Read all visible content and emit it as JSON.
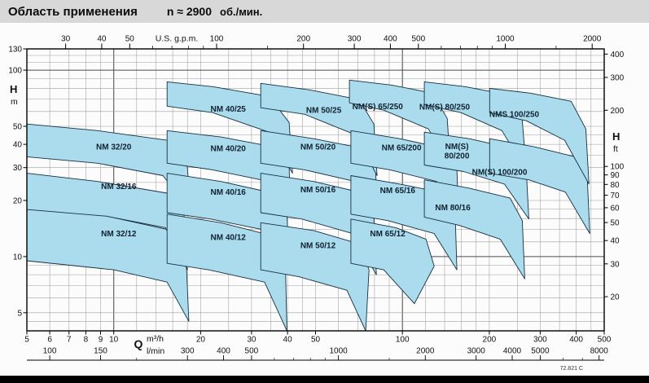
{
  "header": {
    "title": "Область применения",
    "speed": "n ≈ 2900",
    "speed_units": "об./мин."
  },
  "footer": {
    "drawing_number": "72.821 C"
  },
  "colors": {
    "title_bg": "#d8d8d8",
    "region_fill": "#abdcee",
    "region_stroke": "#17303f",
    "grid_minor": "#9e9e9e",
    "grid_major": "#4d4d4d",
    "frame": "#000000",
    "text": "#111111"
  },
  "chart_data": {
    "type": "area",
    "title": "Область применения n ≈ 2900 об./мин.",
    "description": "Pump application range chart: flow Q vs head H, log-log axes, shaded operating region per pump model",
    "q_range_m3h": [
      5,
      500
    ],
    "h_range_m": [
      4,
      130
    ],
    "axes": {
      "top": {
        "title": "U.S. g.p.m.",
        "gpm_per_m3h": 4.4029,
        "labels": [
          30,
          40,
          50,
          100,
          200,
          300,
          400,
          500,
          1000,
          2000
        ],
        "minor_ticks": [
          60,
          70,
          80,
          90,
          150,
          600,
          700,
          800,
          900,
          1500
        ]
      },
      "bottom": {
        "letter": "Q",
        "unit_primary": "m³/h",
        "unit_secondary": "l/min",
        "m3h_labels": [
          5,
          6,
          7,
          8,
          9,
          10,
          20,
          30,
          40,
          50,
          100,
          200,
          300,
          400,
          500
        ],
        "lmin_per_m3h": 16.667,
        "lmin_labels": [
          100,
          150,
          300,
          400,
          500,
          1000,
          2000,
          3000,
          4000,
          5000,
          8000
        ],
        "lmin_minor_ticks": [
          200,
          600,
          700,
          800,
          900,
          1500,
          6000,
          7000
        ]
      },
      "left": {
        "letter": "H",
        "unit": "m",
        "labels": [
          130,
          100,
          50,
          40,
          30,
          20,
          10,
          5
        ]
      },
      "right": {
        "letter": "H",
        "unit": "ft",
        "m_per_ft": 0.3048,
        "labels": [
          400,
          300,
          200,
          100,
          90,
          80,
          70,
          60,
          50,
          40,
          30,
          20
        ]
      }
    },
    "grid": {
      "x_minor": [
        6,
        7,
        8,
        9,
        12,
        14,
        16,
        18,
        20,
        25,
        30,
        35,
        40,
        45,
        50,
        60,
        70,
        80,
        90,
        120,
        140,
        160,
        180,
        200,
        250,
        300,
        350,
        400,
        450
      ],
      "x_major": [
        10,
        100
      ],
      "y_minor": [
        4.5,
        5,
        6,
        7,
        8,
        9,
        12,
        14,
        16,
        18,
        20,
        25,
        30,
        35,
        40,
        45,
        50,
        60,
        70,
        80,
        90,
        110,
        120
      ],
      "y_major": [
        10,
        100
      ]
    },
    "regions": [
      {
        "name": "NM 32/12",
        "label_lines": [
          "NM 32/12"
        ],
        "label_q": 10.4,
        "label_h": 13.3,
        "points_q_h": [
          [
            5,
            19.1
          ],
          [
            8.8,
            16.9
          ],
          [
            15.3,
            14.0
          ],
          [
            17.8,
            9.9
          ],
          [
            18.2,
            4.5
          ],
          [
            15.3,
            7.3
          ],
          [
            10,
            8.5
          ],
          [
            5,
            9.5
          ]
        ]
      },
      {
        "name": "NM 32/16",
        "label_lines": [
          "NM 32/16"
        ],
        "label_q": 10.4,
        "label_h": 23.8,
        "points_q_h": [
          [
            5,
            28.0
          ],
          [
            8.8,
            25.3
          ],
          [
            15.3,
            21.9
          ],
          [
            17.5,
            16.9
          ],
          [
            18,
            8.5
          ],
          [
            15.1,
            14.3
          ],
          [
            9.4,
            16.5
          ],
          [
            5,
            17.9
          ]
        ]
      },
      {
        "name": "NM 32/20",
        "label_lines": [
          "NM 32/20"
        ],
        "label_q": 10.0,
        "label_h": 38.8,
        "points_q_h": [
          [
            5,
            51.4
          ],
          [
            8.8,
            47.4
          ],
          [
            15.3,
            42.1
          ],
          [
            18,
            30.1
          ],
          [
            18.4,
            17.6
          ],
          [
            14.8,
            27.2
          ],
          [
            8.8,
            31.7
          ],
          [
            5,
            34.3
          ]
        ]
      },
      {
        "name": "NM 40/12",
        "label_lines": [
          "NM 40/12"
        ],
        "label_q": 24.9,
        "label_h": 12.7,
        "points_q_h": [
          [
            15.3,
            16.9
          ],
          [
            23.5,
            15.2
          ],
          [
            35.7,
            12.9
          ],
          [
            39.3,
            9.4
          ],
          [
            39.8,
            4.0
          ],
          [
            33.3,
            7.3
          ],
          [
            21.3,
            8.5
          ],
          [
            15.3,
            9.2
          ]
        ]
      },
      {
        "name": "NM 40/16",
        "label_lines": [
          "NM 40/16"
        ],
        "label_q": 24.9,
        "label_h": 22.2,
        "points_q_h": [
          [
            15.3,
            28.0
          ],
          [
            23.5,
            25.3
          ],
          [
            35.7,
            21.9
          ],
          [
            39.8,
            16.9
          ],
          [
            40.7,
            8.5
          ],
          [
            34.0,
            13.8
          ],
          [
            21.7,
            15.9
          ],
          [
            15.3,
            17.2
          ]
        ]
      },
      {
        "name": "NM 40/20",
        "label_lines": [
          "NM 40/20"
        ],
        "label_q": 24.9,
        "label_h": 38.0,
        "points_q_h": [
          [
            15.3,
            47.4
          ],
          [
            23.5,
            43.8
          ],
          [
            35.7,
            38.8
          ],
          [
            40.5,
            30.1
          ],
          [
            41,
            16.9
          ],
          [
            34.5,
            25.3
          ],
          [
            22,
            29.2
          ],
          [
            15.3,
            31.7
          ]
        ]
      },
      {
        "name": "NM 40/25",
        "label_lines": [
          "NM 40/25"
        ],
        "label_q": 24.9,
        "label_h": 62.0,
        "points_q_h": [
          [
            15.3,
            86.6
          ],
          [
            22,
            81.6
          ],
          [
            34.5,
            72.3
          ],
          [
            40.5,
            52.4
          ],
          [
            41.6,
            28.0
          ],
          [
            34.5,
            46.5
          ],
          [
            22,
            59.2
          ],
          [
            15.3,
            64.1
          ]
        ]
      },
      {
        "name": "NM 50/12",
        "label_lines": [
          "NM 50/12"
        ],
        "label_q": 51.0,
        "label_h": 11.5,
        "points_q_h": [
          [
            32.3,
            15.2
          ],
          [
            49.3,
            13.8
          ],
          [
            70.8,
            11.7
          ],
          [
            76.6,
            8.5
          ],
          [
            74.6,
            4.0
          ],
          [
            64.2,
            6.6
          ],
          [
            43.8,
            7.8
          ],
          [
            32.3,
            8.5
          ]
        ]
      },
      {
        "name": "NM 50/16",
        "label_lines": [
          "NM 50/16"
        ],
        "label_q": 51.0,
        "label_h": 22.9,
        "points_q_h": [
          [
            32.3,
            28.0
          ],
          [
            49.3,
            25.3
          ],
          [
            73.2,
            21.9
          ],
          [
            79.6,
            16.3
          ],
          [
            81.2,
            8.0
          ],
          [
            67.2,
            13.3
          ],
          [
            44.9,
            15.9
          ],
          [
            32.3,
            17.2
          ]
        ]
      },
      {
        "name": "NM 50/20",
        "label_lines": [
          "NM 50/20"
        ],
        "label_q": 51.0,
        "label_h": 38.8,
        "points_q_h": [
          [
            32.3,
            47.4
          ],
          [
            49.3,
            42.9
          ],
          [
            73.2,
            38.0
          ],
          [
            80.7,
            29.2
          ],
          [
            82.2,
            16.3
          ],
          [
            68.5,
            25.3
          ],
          [
            45.8,
            29.2
          ],
          [
            32.3,
            31.7
          ]
        ]
      },
      {
        "name": "NM 50/25",
        "label_lines": [
          "NM 50/25"
        ],
        "label_q": 53.4,
        "label_h": 61.0,
        "points_q_h": [
          [
            32.3,
            84.9
          ],
          [
            47.7,
            78.4
          ],
          [
            70.8,
            69.5
          ],
          [
            79.6,
            51.4
          ],
          [
            81.7,
            27.2
          ],
          [
            68.5,
            45.1
          ],
          [
            45.8,
            58.0
          ],
          [
            32.3,
            62.9
          ]
        ]
      },
      {
        "name": "NM 65/12",
        "label_lines": [
          "NM 65/12"
        ],
        "label_q": 88.9,
        "label_h": 13.3,
        "points_q_h": [
          [
            66.3,
            15.9
          ],
          [
            94.9,
            14.3
          ],
          [
            120.7,
            12.4
          ],
          [
            128.8,
            8.9
          ],
          [
            110,
            5.6
          ],
          [
            86.1,
            8.5
          ],
          [
            66.3,
            9.2
          ]
        ]
      },
      {
        "name": "NM 65/16",
        "label_lines": [
          "NM 65/16"
        ],
        "label_q": 96.2,
        "label_h": 22.7,
        "points_q_h": [
          [
            66.3,
            27.2
          ],
          [
            98,
            24.5
          ],
          [
            140,
            21.9
          ],
          [
            152.4,
            16.3
          ],
          [
            154.4,
            8.5
          ],
          [
            128.8,
            13.3
          ],
          [
            88.9,
            15.6
          ],
          [
            66.3,
            16.9
          ]
        ]
      },
      {
        "name": "NM 65/200",
        "label_lines": [
          "NM 65/200"
        ],
        "label_q": 99.3,
        "label_h": 38.4,
        "points_q_h": [
          [
            66.3,
            47.4
          ],
          [
            98,
            42.9
          ],
          [
            140,
            38.0
          ],
          [
            154.4,
            29.2
          ],
          [
            156.4,
            16.9
          ],
          [
            131.3,
            25.3
          ],
          [
            90.6,
            29.2
          ],
          [
            66.3,
            31.7
          ]
        ]
      },
      {
        "name": "NM(S) 65/250",
        "label_lines": [
          "NM(S) 65/250"
        ],
        "label_q": 82,
        "label_h": 64.1,
        "points_q_h": [
          [
            65.5,
            88.4
          ],
          [
            91.8,
            83.2
          ],
          [
            127.1,
            75.3
          ],
          [
            142.9,
            55.1
          ],
          [
            146.6,
            30.1
          ],
          [
            123,
            48.4
          ],
          [
            86.1,
            61.0
          ],
          [
            65.5,
            66.8
          ]
        ]
      },
      {
        "name": "NM 80/16",
        "label_lines": [
          "NM 80/16"
        ],
        "label_q": 149.5,
        "label_h": 18.4,
        "points_q_h": [
          [
            119.1,
            25.8
          ],
          [
            170.3,
            23.3
          ],
          [
            236.2,
            20.6
          ],
          [
            260.2,
            15.6
          ],
          [
            265.3,
            7.6
          ],
          [
            218.3,
            12.4
          ],
          [
            157.4,
            14.7
          ],
          [
            119.1,
            16.3
          ]
        ]
      },
      {
        "name": "NM(S) 80/200",
        "label_lines": [
          "NM(S)",
          "80/200"
        ],
        "label_q": 154.4,
        "label_h": 36.9,
        "points_q_h": [
          [
            119.1,
            46.5
          ],
          [
            170.3,
            42.9
          ],
          [
            240.8,
            38.0
          ],
          [
            268.7,
            28.6
          ],
          [
            274,
            15.9
          ],
          [
            225.7,
            24.5
          ],
          [
            162.7,
            28.6
          ],
          [
            119.1,
            31.0
          ]
        ]
      },
      {
        "name": "NM(S) 80/250",
        "label_lines": [
          "NM(S) 80/250"
        ],
        "label_q": 140,
        "label_h": 63.5,
        "points_q_h": [
          [
            119.1,
            86.6
          ],
          [
            164.8,
            81.6
          ],
          [
            231.6,
            73.8
          ],
          [
            260.2,
            53.5
          ],
          [
            268.7,
            28.6
          ],
          [
            221.2,
            47.4
          ],
          [
            159.5,
            59.2
          ],
          [
            119.1,
            65.4
          ]
        ]
      },
      {
        "name": "NM(S) 100/200",
        "label_lines": [
          "NM(S) 100/200"
        ],
        "label_q": 217,
        "label_h": 28.4,
        "points_q_h": [
          [
            200.5,
            42.9
          ],
          [
            286.8,
            38.8
          ],
          [
            396.6,
            34.3
          ],
          [
            437.1,
            25.8
          ],
          [
            445.6,
            13.3
          ],
          [
            366.9,
            22.2
          ],
          [
            274,
            25.8
          ],
          [
            200.5,
            28.0
          ]
        ]
      },
      {
        "name": "NMS 100/250",
        "label_lines": [
          "NMS 100/250"
        ],
        "label_q": 244,
        "label_h": 58.0,
        "points_q_h": [
          [
            200.5,
            79.9
          ],
          [
            277.6,
            75.3
          ],
          [
            384,
            68.1
          ],
          [
            431.6,
            48.4
          ],
          [
            442.8,
            24.5
          ],
          [
            364.6,
            42.1
          ],
          [
            268.7,
            53.5
          ],
          [
            200.5,
            59.2
          ]
        ]
      }
    ]
  }
}
